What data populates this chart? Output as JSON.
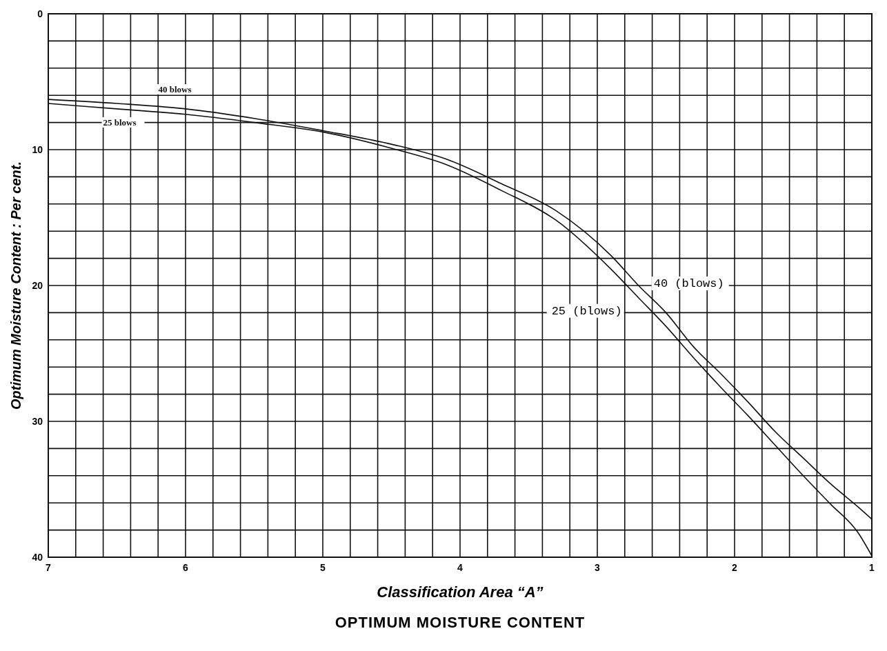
{
  "chart_data": {
    "type": "line",
    "title": "OPTIMUM MOISTURE CONTENT",
    "xlabel": "Classification  Area “A”",
    "ylabel": "Optimum Moisture Content : Per cent.",
    "xlim": [
      7,
      1
    ],
    "ylim": [
      40,
      0
    ],
    "xticks": [
      7,
      {
        "value": 6.8,
        "label": null
      },
      {
        "value": 6.6,
        "label": null
      },
      {
        "value": 6.4,
        "label": null
      },
      {
        "value": 6.2,
        "label": null
      },
      6,
      {
        "value": 5.8,
        "label": null
      },
      {
        "value": 5.6,
        "label": null
      },
      {
        "value": 5.4,
        "label": null
      },
      {
        "value": 5.2,
        "label": null
      },
      5,
      {
        "value": 4.8,
        "label": null
      },
      {
        "value": 4.6,
        "label": null
      },
      {
        "value": 4.4,
        "label": null
      },
      {
        "value": 4.2,
        "label": null
      },
      4,
      {
        "value": 3.8,
        "label": null
      },
      {
        "value": 3.6,
        "label": null
      },
      {
        "value": 3.4,
        "label": null
      },
      {
        "value": 3.2,
        "label": null
      },
      3,
      {
        "value": 2.8,
        "label": null
      },
      {
        "value": 2.6,
        "label": null
      },
      {
        "value": 2.4,
        "label": null
      },
      {
        "value": 2.2,
        "label": null
      },
      2,
      {
        "value": 1.8,
        "label": null
      },
      {
        "value": 1.6,
        "label": null
      },
      {
        "value": 1.4,
        "label": null
      },
      {
        "value": 1.2,
        "label": null
      },
      1
    ],
    "yticks": [
      0,
      {
        "value": 2,
        "label": null
      },
      {
        "value": 4,
        "label": null
      },
      {
        "value": 6,
        "label": null
      },
      {
        "value": 8,
        "label": null
      },
      10,
      {
        "value": 12,
        "label": null
      },
      {
        "value": 14,
        "label": null
      },
      {
        "value": 16,
        "label": null
      },
      {
        "value": 18,
        "label": null
      },
      20,
      {
        "value": 22,
        "label": null
      },
      {
        "value": 24,
        "label": null
      },
      {
        "value": 26,
        "label": null
      },
      {
        "value": 28,
        "label": null
      },
      30,
      {
        "value": 32,
        "label": null
      },
      {
        "value": 34,
        "label": null
      },
      {
        "value": 36,
        "label": null
      },
      {
        "value": 38,
        "label": null
      },
      40
    ],
    "grid": true,
    "marker": "none",
    "line_style": "solid",
    "series": [
      {
        "name": "40 blows",
        "color": "#111111",
        "x": [
          7,
          6.5,
          6,
          5.5,
          5,
          4.5,
          4.1,
          3.7,
          3.3,
          2.9,
          2.7,
          2.5,
          2.3,
          2.1,
          1.9,
          1.7,
          1.5,
          1.3,
          1.1,
          1.0
        ],
        "values": [
          6.3,
          6.6,
          7.0,
          7.7,
          8.6,
          9.6,
          10.7,
          12.5,
          14.5,
          17.8,
          20.0,
          22.0,
          24.5,
          26.5,
          28.6,
          30.8,
          32.7,
          34.6,
          36.3,
          37.2
        ]
      },
      {
        "name": "25 blows",
        "color": "#111111",
        "x": [
          7,
          6.5,
          6,
          5.5,
          5,
          4.5,
          4.1,
          3.7,
          3.3,
          2.9,
          2.7,
          2.5,
          2.3,
          2.1,
          1.9,
          1.7,
          1.5,
          1.3,
          1.1,
          1.0
        ],
        "values": [
          6.6,
          7.0,
          7.4,
          8.0,
          8.7,
          9.9,
          11.1,
          13.0,
          15.2,
          18.8,
          20.9,
          23.0,
          25.3,
          27.5,
          29.6,
          31.8,
          34.0,
          36.1,
          38.2,
          39.9
        ]
      }
    ],
    "annotations": [
      "40 (blows)",
      "25 (blows)"
    ]
  }
}
